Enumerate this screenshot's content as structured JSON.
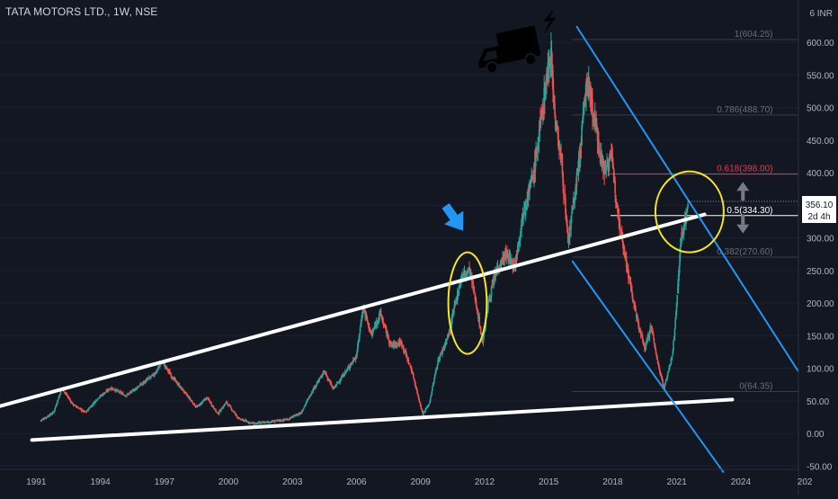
{
  "header": {
    "title": "TATA MOTORS LTD., 1W, NSE",
    "currency": "6 INR"
  },
  "price_tag": {
    "price": "356.10",
    "countdown": "2d 4h"
  },
  "chart_data": {
    "type": "candlestick",
    "title": "TATA MOTORS LTD., 1W, NSE",
    "x_ticks": [
      "1991",
      "1994",
      "1997",
      "2000",
      "2003",
      "2006",
      "2009",
      "2012",
      "2015",
      "2018",
      "2021",
      "2024",
      "202"
    ],
    "y_ticks": [
      600,
      550,
      500,
      450,
      400,
      350,
      300,
      250,
      200,
      150,
      100,
      50,
      0,
      -50
    ],
    "y_tick_labels": [
      "600.00",
      "550.00",
      "500.00",
      "450.00",
      "400.00",
      "350.00",
      "300.00",
      "250.00",
      "200.00",
      "150.00",
      "100.00",
      "50.00",
      "0.00",
      "-50.00"
    ],
    "ylim": [
      -55,
      665
    ],
    "xlim": [
      1989.3,
      2026.7
    ],
    "price_path": [
      [
        1991.2,
        20
      ],
      [
        1991.8,
        32
      ],
      [
        1992.2,
        70
      ],
      [
        1992.7,
        45
      ],
      [
        1993.3,
        32
      ],
      [
        1993.9,
        55
      ],
      [
        1994.5,
        70
      ],
      [
        1995.2,
        58
      ],
      [
        1995.9,
        75
      ],
      [
        1996.5,
        90
      ],
      [
        1996.9,
        110
      ],
      [
        1997.4,
        85
      ],
      [
        1997.9,
        65
      ],
      [
        1998.5,
        40
      ],
      [
        1999.0,
        55
      ],
      [
        1999.5,
        30
      ],
      [
        1999.9,
        48
      ],
      [
        2000.5,
        22
      ],
      [
        2001.2,
        15
      ],
      [
        2002.0,
        18
      ],
      [
        2002.8,
        22
      ],
      [
        2003.4,
        32
      ],
      [
        2004.0,
        70
      ],
      [
        2004.5,
        95
      ],
      [
        2004.9,
        68
      ],
      [
        2005.5,
        95
      ],
      [
        2006.0,
        120
      ],
      [
        2006.3,
        195
      ],
      [
        2006.7,
        150
      ],
      [
        2007.1,
        185
      ],
      [
        2007.6,
        135
      ],
      [
        2008.1,
        140
      ],
      [
        2008.6,
        95
      ],
      [
        2008.9,
        55
      ],
      [
        2009.1,
        30
      ],
      [
        2009.4,
        45
      ],
      [
        2009.8,
        110
      ],
      [
        2010.3,
        150
      ],
      [
        2010.9,
        240
      ],
      [
        2011.3,
        250
      ],
      [
        2011.6,
        200
      ],
      [
        2011.9,
        140
      ],
      [
        2012.2,
        205
      ],
      [
        2012.6,
        255
      ],
      [
        2013.0,
        275
      ],
      [
        2013.4,
        255
      ],
      [
        2013.8,
        340
      ],
      [
        2014.3,
        400
      ],
      [
        2014.8,
        520
      ],
      [
        2015.1,
        590
      ],
      [
        2015.3,
        480
      ],
      [
        2015.6,
        420
      ],
      [
        2015.9,
        290
      ],
      [
        2016.4,
        410
      ],
      [
        2016.8,
        545
      ],
      [
        2017.2,
        470
      ],
      [
        2017.6,
        400
      ],
      [
        2017.9,
        430
      ],
      [
        2018.3,
        330
      ],
      [
        2018.7,
        250
      ],
      [
        2019.1,
        180
      ],
      [
        2019.5,
        130
      ],
      [
        2019.8,
        165
      ],
      [
        2020.1,
        110
      ],
      [
        2020.4,
        70
      ],
      [
        2020.8,
        120
      ],
      [
        2021.0,
        200
      ],
      [
        2021.2,
        300
      ],
      [
        2021.4,
        330
      ],
      [
        2021.55,
        356.1
      ]
    ],
    "fibonacci": [
      {
        "ratio": "1",
        "value": 604.25,
        "label": "1(604.25)"
      },
      {
        "ratio": "0.786",
        "value": 488.7,
        "label": "0.786(488.70)"
      },
      {
        "ratio": "0.618",
        "value": 398.0,
        "label": "0.618(398.00)"
      },
      {
        "ratio": "0.5",
        "value": 334.3,
        "label": "0.5(334.30)"
      },
      {
        "ratio": "0.382",
        "value": 270.6,
        "label": "0.382(270.60)"
      },
      {
        "ratio": "0",
        "value": 64.35,
        "label": "0(64.35)"
      }
    ],
    "last_price": 356.1,
    "colors": {
      "background": "#131722",
      "up": "#26a69a",
      "down": "#ef5350",
      "trendline": "#ffffff",
      "channel": "#2196f3",
      "highlight": "#f5e625",
      "fib_red": "#f23645",
      "fib_white": "#ffffff",
      "fib_gray": "#5d606b",
      "arrow_blue": "#2196f3",
      "arrow_gray": "#787b86"
    },
    "annotations": [
      {
        "type": "trendline",
        "color": "white",
        "from": [
          1989.3,
          42
        ],
        "to": [
          2022.3,
          336
        ]
      },
      {
        "type": "trendline",
        "color": "white",
        "from": [
          1990.8,
          -10
        ],
        "to": [
          2023.6,
          52
        ]
      },
      {
        "type": "channel_line",
        "color": "blue",
        "from": [
          2016.3,
          625
        ],
        "to": [
          2026.7,
          95
        ]
      },
      {
        "type": "channel_line",
        "color": "blue",
        "from": [
          2016.1,
          265
        ],
        "to": [
          2023.2,
          -60
        ]
      },
      {
        "type": "ellipse",
        "color": "yellow",
        "center": [
          2011.2,
          200
        ],
        "radii": [
          0.9,
          78
        ]
      },
      {
        "type": "ellipse",
        "color": "yellow",
        "center": [
          2021.6,
          340
        ],
        "radii": [
          1.6,
          62
        ]
      },
      {
        "type": "arrow",
        "color": "blue",
        "direction": "down",
        "at": [
          2010.8,
          320
        ]
      },
      {
        "type": "arrow",
        "color": "gray",
        "direction": "up",
        "at": [
          2024.1,
          375
        ]
      },
      {
        "type": "arrow",
        "color": "gray",
        "direction": "down",
        "at": [
          2024.1,
          318
        ]
      },
      {
        "type": "icon",
        "name": "delivery-truck-icon",
        "at": [
          2013.0,
          580
        ]
      },
      {
        "type": "icon",
        "name": "lightning-bolt-icon",
        "at": [
          2015.0,
          635
        ]
      }
    ]
  }
}
